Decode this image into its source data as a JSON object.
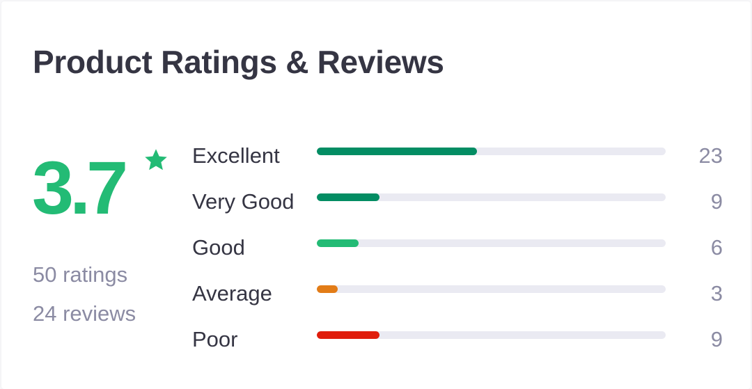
{
  "title": "Product Ratings & Reviews",
  "summary": {
    "average": "3.7",
    "star_icon": "star-icon",
    "ratings_text": "50 ratings",
    "reviews_text": "24 reviews"
  },
  "colors": {
    "score": "#23bb75",
    "track": "#eaeaf2"
  },
  "breakdown": [
    {
      "label": "Excellent",
      "count": "23",
      "fill_fraction": 0.46,
      "color": "#038d63"
    },
    {
      "label": "Very Good",
      "count": "9",
      "fill_fraction": 0.18,
      "color": "#038d63"
    },
    {
      "label": "Good",
      "count": "6",
      "fill_fraction": 0.12,
      "color": "#23bb75"
    },
    {
      "label": "Average",
      "count": "3",
      "fill_fraction": 0.06,
      "color": "#e27c17"
    },
    {
      "label": "Poor",
      "count": "9",
      "fill_fraction": 0.18,
      "color": "#e01d0c"
    }
  ]
}
